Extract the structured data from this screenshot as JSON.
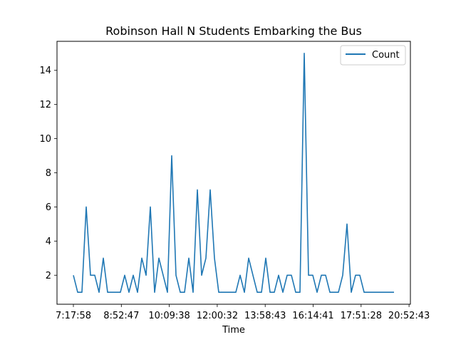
{
  "chart_data": {
    "type": "line",
    "title": "Robinson Hall N Students Embarking the Bus",
    "xlabel": "Time",
    "ylabel": "",
    "x_tick_labels": [
      "7:17:58",
      "8:52:47",
      "10:09:38",
      "12:00:32",
      "13:58:43",
      "16:14:41",
      "17:51:28",
      "20:52:43"
    ],
    "y_ticks": [
      2,
      4,
      6,
      8,
      10,
      12,
      14
    ],
    "ylim": [
      0.3,
      15.7
    ],
    "grid": false,
    "legend_position": "upper right",
    "series": [
      {
        "name": "Count",
        "color": "#1f77b4",
        "values": [
          2,
          1,
          1,
          6,
          2,
          2,
          1,
          3,
          1,
          1,
          1,
          1,
          2,
          1,
          2,
          1,
          3,
          2,
          6,
          1,
          3,
          2,
          1,
          9,
          2,
          1,
          1,
          3,
          1,
          7,
          2,
          3,
          7,
          3,
          1,
          1,
          1,
          1,
          1,
          2,
          1,
          3,
          2,
          1,
          1,
          3,
          1,
          1,
          2,
          1,
          2,
          2,
          1,
          1,
          15,
          2,
          2,
          1,
          2,
          2,
          1,
          1,
          1,
          2,
          5,
          1,
          2,
          2,
          1,
          1,
          1,
          1,
          1,
          1,
          1,
          1
        ]
      }
    ]
  }
}
